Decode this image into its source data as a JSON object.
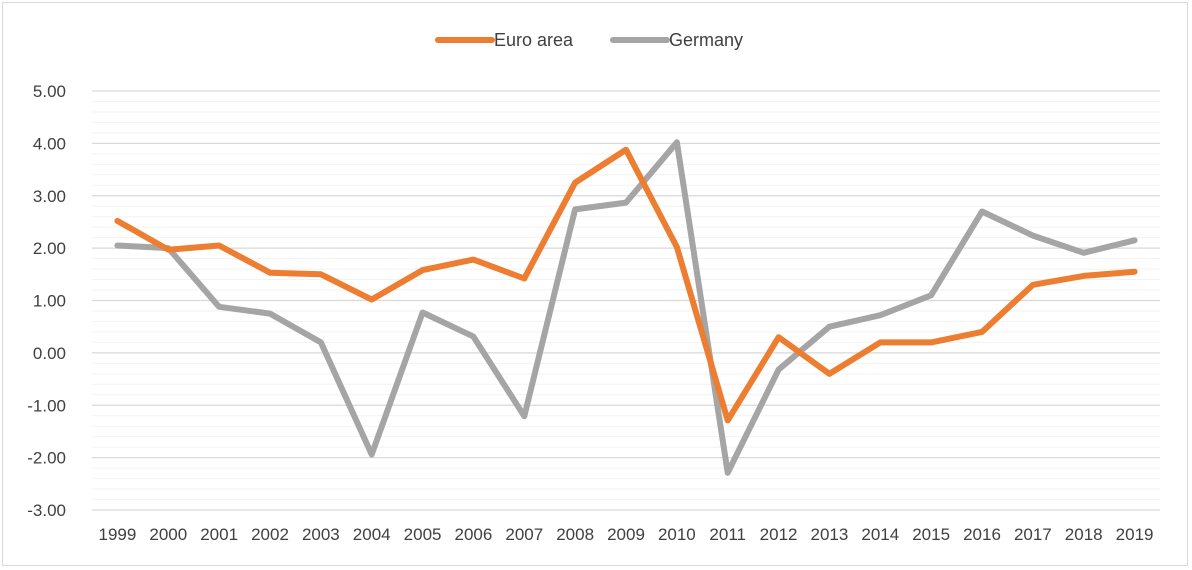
{
  "chart_data": {
    "type": "line",
    "title": "",
    "xlabel": "",
    "ylabel": "",
    "categories": [
      "1999",
      "2000",
      "2001",
      "2002",
      "2003",
      "2004",
      "2005",
      "2006",
      "2007",
      "2008",
      "2009",
      "2010",
      "2011",
      "2012",
      "2013",
      "2014",
      "2015",
      "2016",
      "2017",
      "2018",
      "2019"
    ],
    "series": [
      {
        "name": "Euro area",
        "color": "#ED7D31",
        "values": [
          2.52,
          1.97,
          2.05,
          1.53,
          1.5,
          1.02,
          1.58,
          1.78,
          1.42,
          3.25,
          3.88,
          2.02,
          -1.29,
          0.3,
          -0.4,
          0.2,
          0.2,
          0.4,
          1.3,
          1.47,
          1.55
        ]
      },
      {
        "name": "Germany",
        "color": "#A5A5A5",
        "values": [
          2.05,
          2.0,
          0.88,
          0.75,
          0.2,
          -1.94,
          0.77,
          0.31,
          -1.21,
          2.74,
          2.87,
          4.02,
          -2.29,
          -0.32,
          0.5,
          0.72,
          1.1,
          2.7,
          2.24,
          1.91,
          2.15
        ]
      }
    ],
    "ylim": [
      -3,
      5
    ],
    "yticks": [
      "-3.00",
      "-2.00",
      "-1.00",
      "0.00",
      "1.00",
      "2.00",
      "3.00",
      "4.00",
      "5.00"
    ],
    "ytick_values": [
      -3,
      -2,
      -1,
      0,
      1,
      2,
      3,
      4,
      5
    ],
    "grid": true,
    "minor_grid": true,
    "legend_position": "top-center"
  }
}
